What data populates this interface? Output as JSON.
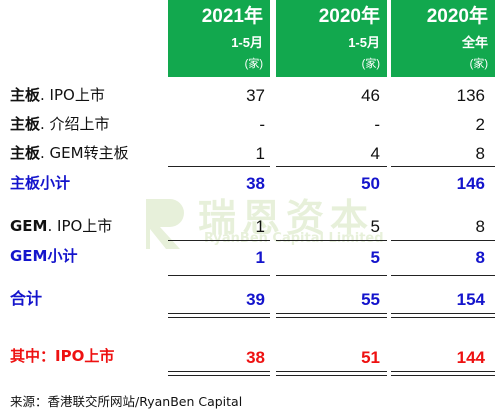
{
  "header": {
    "col1": {
      "year": "2021年",
      "period": "1-5月",
      "unit": "(家)"
    },
    "col2": {
      "year": "2020年",
      "period": "1-5月",
      "unit": "(家)"
    },
    "col3": {
      "year": "2020年",
      "period": "全年",
      "unit": "(家)"
    }
  },
  "rows": {
    "main_ipo": {
      "prefix": "主板",
      "suffix": ". IPO上市",
      "v1": "37",
      "v2": "46",
      "v3": "136"
    },
    "main_intro": {
      "prefix": "主板",
      "suffix": ". 介绍上市",
      "v1": "-",
      "v2": "-",
      "v3": "2"
    },
    "main_gem": {
      "prefix": "主板",
      "suffix": ". GEM转主板",
      "v1": "1",
      "v2": "4",
      "v3": "8"
    },
    "main_subtotal": {
      "label": "主板小计",
      "v1": "38",
      "v2": "50",
      "v3": "146"
    },
    "gem_ipo": {
      "prefix": "GEM",
      "suffix": ". IPO上市",
      "v1": "1",
      "v2": "5",
      "v3": "8"
    },
    "gem_subtotal": {
      "label": "GEM小计",
      "v1": "1",
      "v2": "5",
      "v3": "8"
    },
    "total": {
      "label": "合计",
      "v1": "39",
      "v2": "55",
      "v3": "154"
    },
    "of_which_ipo": {
      "label": "其中：IPO上市",
      "v1": "38",
      "v2": "51",
      "v3": "144"
    }
  },
  "watermark": {
    "title": "瑞恩资本",
    "subtitle": "RyanBen Capital Limited"
  },
  "source": "来源：香港联交所网站/RyanBen Capital",
  "colors": {
    "header_bg": "#12a84e",
    "subtotal": "#1414cc",
    "highlight": "#ee1111"
  }
}
